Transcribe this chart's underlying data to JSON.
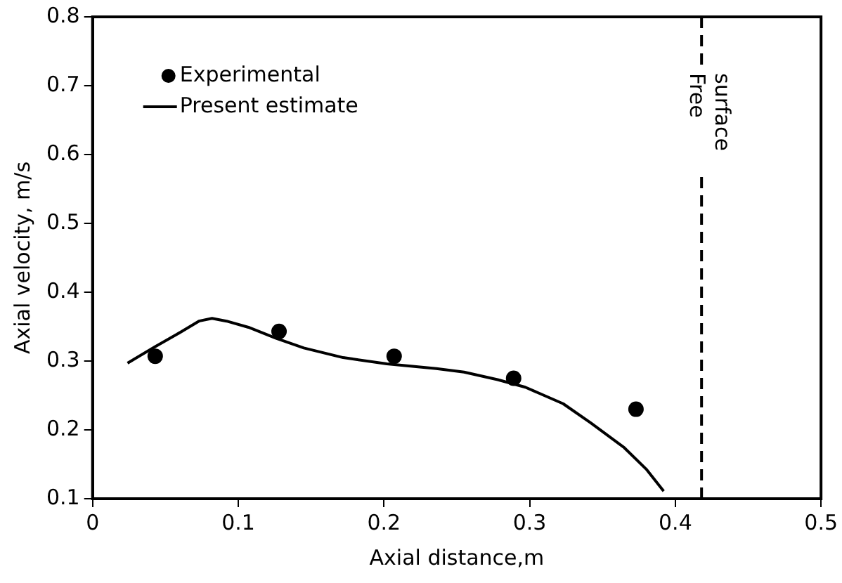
{
  "chart_data": {
    "type": "scatter",
    "xlabel": "Axial distance,m",
    "ylabel": "Axial velocity, m/s",
    "xlim": [
      0,
      0.5
    ],
    "xticks": [
      0,
      0.1,
      0.2,
      0.3,
      0.4,
      0.5
    ],
    "ylim": [
      0.1,
      0.8
    ],
    "yticks": [
      0.1,
      0.2,
      0.3,
      0.4,
      0.5,
      0.6,
      0.7,
      0.8
    ],
    "grid": false,
    "legend": "top left",
    "series": [
      {
        "name": "Experimental",
        "marker": "circle",
        "color": "#000000",
        "x": [
          0.043,
          0.128,
          0.207,
          0.289,
          0.373
        ],
        "values": [
          0.307,
          0.343,
          0.307,
          0.275,
          0.23
        ]
      },
      {
        "name": "Present estimate",
        "type": "line",
        "marker": "none",
        "line_style": "solid",
        "color": "#000000",
        "x": [
          0.024,
          0.043,
          0.058,
          0.073,
          0.082,
          0.092,
          0.107,
          0.126,
          0.145,
          0.172,
          0.202,
          0.236,
          0.255,
          0.278,
          0.297,
          0.323,
          0.342,
          0.365,
          0.38,
          0.392
        ],
        "values": [
          0.297,
          0.321,
          0.339,
          0.358,
          0.362,
          0.358,
          0.349,
          0.333,
          0.319,
          0.305,
          0.296,
          0.289,
          0.284,
          0.273,
          0.262,
          0.238,
          0.21,
          0.174,
          0.143,
          0.111
        ]
      }
    ],
    "ref_lines": [
      {
        "axis": "x",
        "value": 0.418,
        "label": "Free surface",
        "line_style": "dashed",
        "color": "#000000"
      }
    ]
  }
}
